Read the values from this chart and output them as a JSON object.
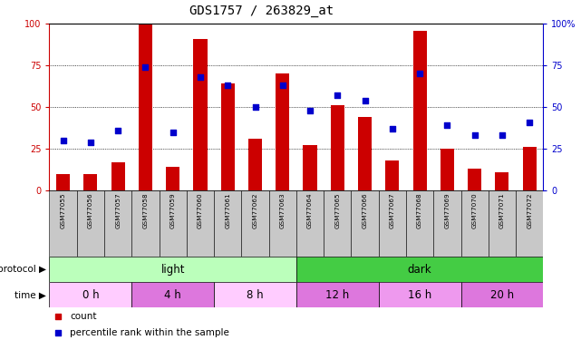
{
  "title": "GDS1757 / 263829_at",
  "samples": [
    "GSM77055",
    "GSM77056",
    "GSM77057",
    "GSM77058",
    "GSM77059",
    "GSM77060",
    "GSM77061",
    "GSM77062",
    "GSM77063",
    "GSM77064",
    "GSM77065",
    "GSM77066",
    "GSM77067",
    "GSM77068",
    "GSM77069",
    "GSM77070",
    "GSM77071",
    "GSM77072"
  ],
  "bar_values": [
    10,
    10,
    17,
    100,
    14,
    91,
    64,
    31,
    70,
    27,
    51,
    44,
    18,
    96,
    25,
    13,
    11,
    26
  ],
  "dot_values": [
    30,
    29,
    36,
    74,
    35,
    68,
    63,
    50,
    63,
    48,
    57,
    54,
    37,
    70,
    39,
    33,
    33,
    41
  ],
  "bar_color": "#cc0000",
  "dot_color": "#0000cc",
  "ylim": [
    0,
    100
  ],
  "yticks": [
    0,
    25,
    50,
    75,
    100
  ],
  "protocol_groups": [
    {
      "label": "light",
      "start": 0,
      "end": 9,
      "color": "#bbffbb"
    },
    {
      "label": "dark",
      "start": 9,
      "end": 18,
      "color": "#44cc44"
    }
  ],
  "time_groups": [
    {
      "label": "0 h",
      "start": 0,
      "end": 3,
      "color": "#ffccff"
    },
    {
      "label": "4 h",
      "start": 3,
      "end": 6,
      "color": "#dd77dd"
    },
    {
      "label": "8 h",
      "start": 6,
      "end": 9,
      "color": "#ffccff"
    },
    {
      "label": "12 h",
      "start": 9,
      "end": 12,
      "color": "#dd77dd"
    },
    {
      "label": "16 h",
      "start": 12,
      "end": 15,
      "color": "#ee99ee"
    },
    {
      "label": "20 h",
      "start": 15,
      "end": 18,
      "color": "#dd77dd"
    }
  ],
  "legend_bar_label": "count",
  "legend_dot_label": "percentile rank within the sample",
  "left_axis_color": "#cc0000",
  "right_axis_color": "#0000cc",
  "xlabel_area_color": "#c8c8c8",
  "bar_width": 0.5,
  "title_fontsize": 10,
  "tick_fontsize": 7,
  "sample_fontsize": 5.2,
  "row_label_fontsize": 7.5,
  "protocol_fontsize": 8.5,
  "time_fontsize": 8.5,
  "legend_fontsize": 7.5
}
